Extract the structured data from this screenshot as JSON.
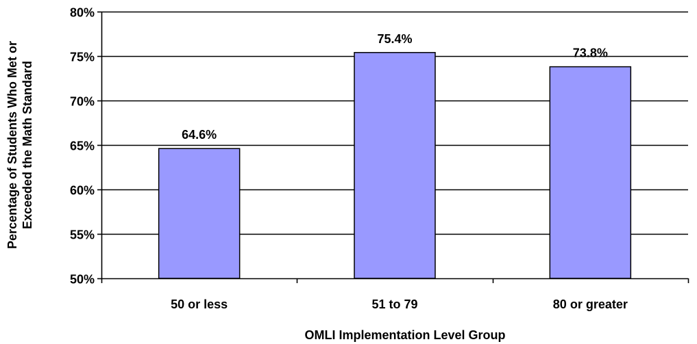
{
  "chart_data": {
    "type": "bar",
    "categories": [
      "50 or less",
      "51 to 79",
      "80 or greater"
    ],
    "values": [
      64.6,
      75.4,
      73.8
    ],
    "data_labels": [
      "64.6%",
      "75.4%",
      "73.8%"
    ],
    "title": "",
    "xlabel": "OMLI Implementation Level Group",
    "ylabel_lines": [
      "Percentage of Students Who Met or",
      "Exceeded the Math Standard"
    ],
    "ylim": [
      50,
      80
    ],
    "y_ticks": [
      50,
      55,
      60,
      65,
      70,
      75,
      80
    ],
    "y_tick_labels": [
      "50%",
      "55%",
      "60%",
      "65%",
      "70%",
      "75%",
      "80%"
    ],
    "grid": true,
    "legend": "none",
    "colors": {
      "bar_fill": "#9999ff",
      "bar_stroke": "#000000",
      "grid": "#000000",
      "axis": "#000000",
      "text": "#000000"
    }
  }
}
